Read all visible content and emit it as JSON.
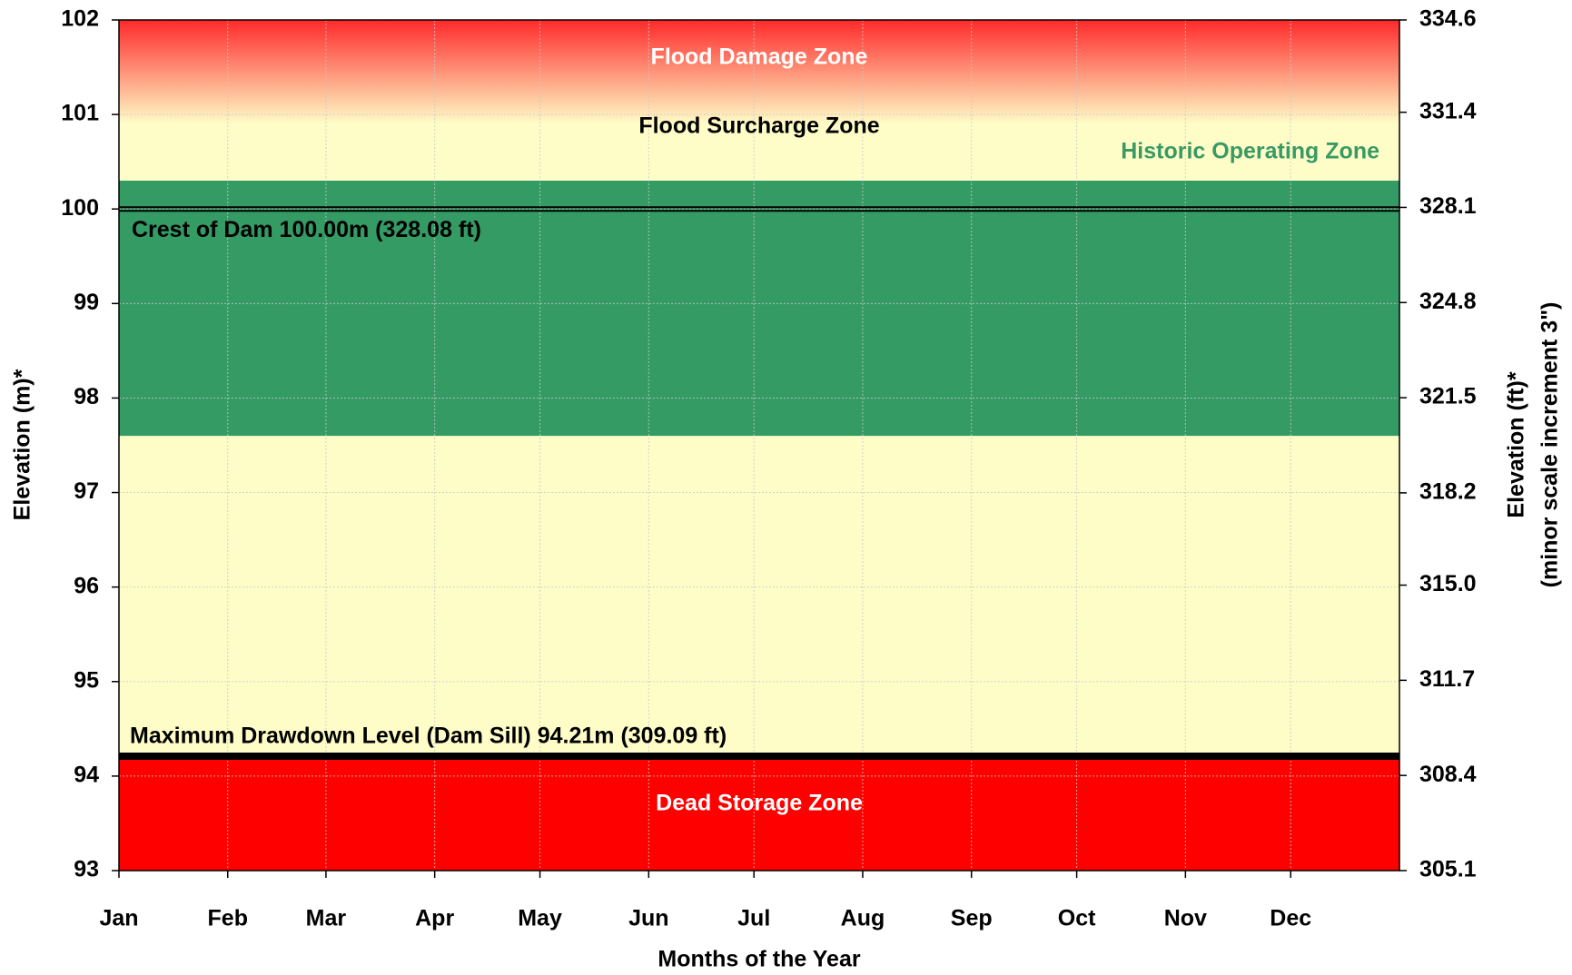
{
  "chart_data": {
    "type": "zones",
    "xlabel": "Months of the Year",
    "ylabel": "Elevation (m)*",
    "y2label": [
      "Elevation (ft)*",
      "(minor scale increment 3\")"
    ],
    "xlim": [
      0,
      365
    ],
    "xticks": [
      {
        "value": 0,
        "label": "Jan"
      },
      {
        "value": 31,
        "label": "Feb"
      },
      {
        "value": 59,
        "label": "Mar"
      },
      {
        "value": 90,
        "label": "Apr"
      },
      {
        "value": 120,
        "label": "May"
      },
      {
        "value": 151,
        "label": "Jun"
      },
      {
        "value": 181,
        "label": "Jul"
      },
      {
        "value": 212,
        "label": "Aug"
      },
      {
        "value": 243,
        "label": "Sep"
      },
      {
        "value": 273,
        "label": "Oct"
      },
      {
        "value": 304,
        "label": "Nov"
      },
      {
        "value": 334,
        "label": "Dec"
      }
    ],
    "ylim": [
      93,
      102
    ],
    "yticks": [
      93,
      94,
      95,
      96,
      97,
      98,
      99,
      100,
      101,
      102
    ],
    "y2lim": [
      305.1,
      334.6
    ],
    "y2ticks": [
      305.1,
      308.4,
      311.7,
      {
        "value": 315.0,
        "label": "315.0"
      },
      318.2,
      321.5,
      324.8,
      328.1,
      331.4,
      334.6
    ],
    "grid": true,
    "background": "#fefdc8",
    "zones": [
      {
        "name": "Flood Surcharge Zone",
        "from": 100.3,
        "to": 102,
        "color": "#fefdc8",
        "label_color": "#000000"
      },
      {
        "name": "Flood Damage Zone",
        "from": 100.9,
        "to": 102,
        "color": [
          "#ff2a2a",
          "#fefdc8"
        ],
        "label_color": "#ffffff"
      },
      {
        "name": "Historic Operating Zone",
        "from": 97.6,
        "to": 100.3,
        "color": "#359b65",
        "label_color": "#3a9a64"
      },
      {
        "name": "Dead Storage Zone",
        "from": 93,
        "to": 94.2,
        "color": "#ff0000",
        "label_color": "#ffffff"
      }
    ],
    "lines": [
      {
        "label": "Crest of Dam 100.00m (328.08 ft)",
        "value": 100.0,
        "style": "double"
      },
      {
        "label": "Maximum Drawdown Level (Dam Sill) 94.21m (309.09 ft)",
        "value": 94.21,
        "style": "thick"
      }
    ]
  }
}
